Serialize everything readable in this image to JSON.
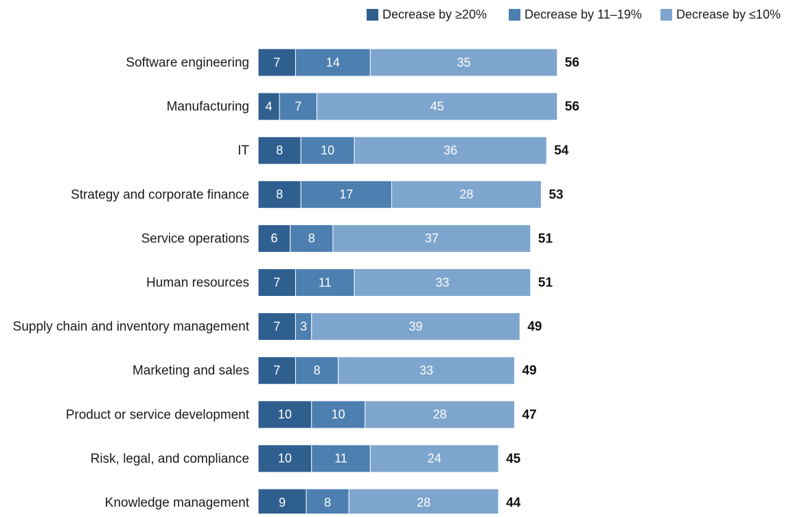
{
  "chart_data": {
    "type": "bar",
    "orientation": "horizontal",
    "stacked": true,
    "title": "",
    "xlabel": "",
    "ylabel": "",
    "xlim": [
      0,
      60
    ],
    "grid": false,
    "legend_position": "top-right",
    "categories": [
      "Software engineering",
      "Manufacturing",
      "IT",
      "Strategy and corporate finance",
      "Service operations",
      "Human resources",
      "Supply chain and inventory management",
      "Marketing and sales",
      "Product or service development",
      "Risk, legal, and compliance",
      "Knowledge management"
    ],
    "series": [
      {
        "name": "Decrease by ≥20%",
        "color": "#2f5f8f",
        "values": [
          7,
          4,
          8,
          8,
          6,
          7,
          7,
          7,
          10,
          10,
          9
        ]
      },
      {
        "name": "Decrease by 11–19%",
        "color": "#4d7fb0",
        "values": [
          14,
          7,
          10,
          17,
          8,
          11,
          3,
          8,
          10,
          11,
          8
        ]
      },
      {
        "name": "Decrease by ≤10%",
        "color": "#7ea5cd",
        "values": [
          35,
          45,
          36,
          28,
          37,
          33,
          39,
          33,
          28,
          24,
          28
        ]
      }
    ],
    "totals": [
      56,
      56,
      54,
      53,
      51,
      51,
      49,
      49,
      47,
      45,
      44
    ]
  }
}
